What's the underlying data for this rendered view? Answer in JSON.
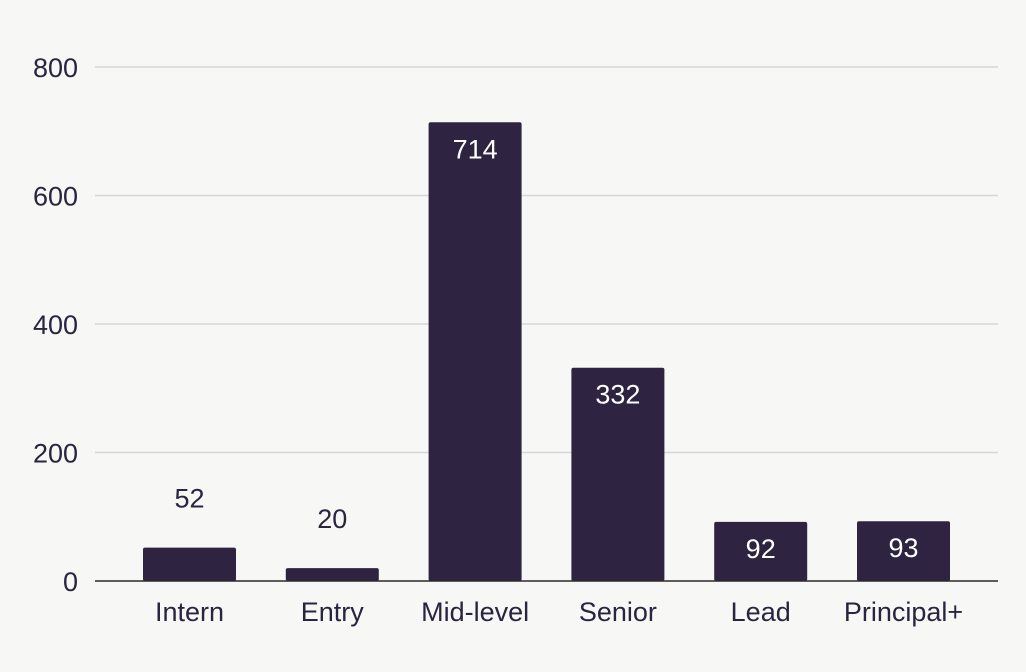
{
  "chart_data": {
    "type": "bar",
    "categories": [
      "Intern",
      "Entry",
      "Mid-level",
      "Senior",
      "Lead",
      "Principal+"
    ],
    "values": [
      52,
      20,
      714,
      332,
      92,
      93
    ],
    "data_labels": [
      "52",
      "20",
      "714",
      "332",
      "92",
      "93"
    ],
    "title": "",
    "xlabel": "",
    "ylabel": "",
    "ylim": [
      0,
      800
    ],
    "yticks": [
      0,
      200,
      400,
      600,
      800
    ],
    "ytick_labels": [
      "0",
      "200",
      "400",
      "600",
      "800"
    ],
    "grid": true,
    "legend": "none",
    "bar_color": "#2e2340",
    "label_inside_color": "#ffffff",
    "label_outside_color": "#2a2440",
    "background": "#f7f7f5"
  }
}
